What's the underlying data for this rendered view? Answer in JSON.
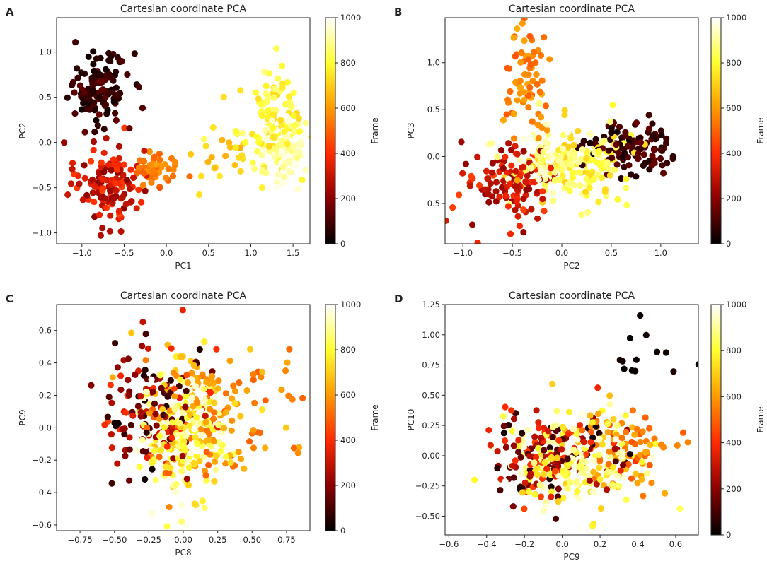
{
  "figure": {
    "colors": {
      "cmap": [
        "#000000",
        "#8b0000",
        "#ff2a00",
        "#ff9a00",
        "#ffff30",
        "#ffffff"
      ],
      "axis": "#222222"
    }
  },
  "chart_data": [
    {
      "panel_label": "A",
      "type": "scatter",
      "title": "Cartesian coordinate PCA",
      "xlabel": "PC1",
      "ylabel": "PC2",
      "xlim": [
        -1.3,
        1.7
      ],
      "ylim": [
        -1.12,
        1.38
      ],
      "xticks": [
        -1.0,
        -0.5,
        0.0,
        0.5,
        1.0,
        1.5
      ],
      "xtick_labels": [
        "−1.0",
        "−0.5",
        "0.0",
        "0.5",
        "1.0",
        "1.5"
      ],
      "yticks": [
        -1.0,
        -0.5,
        0.0,
        0.5,
        1.0
      ],
      "ytick_labels": [
        "−1.0",
        "−0.5",
        "0.0",
        "0.5",
        "1.0"
      ],
      "colorbar": {
        "label": "Frame",
        "range": [
          0,
          1000
        ],
        "ticks": [
          0,
          200,
          400,
          600,
          800,
          1000
        ],
        "tick_labels": [
          "0",
          "200",
          "400",
          "600",
          "800",
          "1000"
        ]
      },
      "clusters": [
        {
          "cx": -0.8,
          "cy": 0.6,
          "sx": 0.18,
          "sy": 0.2,
          "n": 120,
          "f": [
            20,
            150
          ]
        },
        {
          "cx": -0.7,
          "cy": -0.45,
          "sx": 0.2,
          "sy": 0.22,
          "n": 130,
          "f": [
            200,
            450
          ]
        },
        {
          "cx": -0.15,
          "cy": -0.33,
          "sx": 0.13,
          "sy": 0.12,
          "n": 50,
          "f": [
            480,
            620
          ]
        },
        {
          "cx": 0.6,
          "cy": -0.15,
          "sx": 0.2,
          "sy": 0.15,
          "n": 22,
          "f": [
            640,
            760
          ]
        },
        {
          "cx": 1.25,
          "cy": 0.25,
          "sx": 0.2,
          "sy": 0.25,
          "n": 110,
          "f": [
            720,
            880
          ]
        },
        {
          "cx": 1.35,
          "cy": -0.1,
          "sx": 0.18,
          "sy": 0.2,
          "n": 90,
          "f": [
            860,
            1000
          ]
        }
      ]
    },
    {
      "panel_label": "B",
      "type": "scatter",
      "title": "Cartesian coordinate PCA",
      "xlabel": "PC2",
      "ylabel": "PC3",
      "xlim": [
        -1.18,
        1.38
      ],
      "ylim": [
        -0.93,
        1.48
      ],
      "xticks": [
        -1.0,
        -0.5,
        0.0,
        0.5,
        1.0
      ],
      "xtick_labels": [
        "−1.0",
        "−0.5",
        "0.0",
        "0.5",
        "1.0"
      ],
      "yticks": [
        -0.5,
        0.0,
        0.5,
        1.0
      ],
      "ytick_labels": [
        "−0.5",
        "0.0",
        "0.5",
        "1.0"
      ],
      "colorbar": {
        "label": "Frame",
        "range": [
          0,
          1000
        ],
        "ticks": [
          0,
          200,
          400,
          600,
          800,
          1000
        ],
        "tick_labels": [
          "0",
          "200",
          "400",
          "600",
          "800",
          "1000"
        ]
      },
      "clusters": [
        {
          "cx": 0.7,
          "cy": 0.1,
          "sx": 0.22,
          "sy": 0.15,
          "n": 110,
          "f": [
            20,
            150
          ]
        },
        {
          "cx": -0.55,
          "cy": -0.3,
          "sx": 0.22,
          "sy": 0.22,
          "n": 120,
          "f": [
            200,
            450
          ]
        },
        {
          "cx": -0.35,
          "cy": 0.8,
          "sx": 0.12,
          "sy": 0.28,
          "n": 70,
          "f": [
            480,
            640
          ]
        },
        {
          "cx": 0.15,
          "cy": -0.1,
          "sx": 0.3,
          "sy": 0.2,
          "n": 140,
          "f": [
            700,
            880
          ]
        },
        {
          "cx": -0.05,
          "cy": -0.05,
          "sx": 0.22,
          "sy": 0.15,
          "n": 90,
          "f": [
            860,
            1000
          ]
        }
      ]
    },
    {
      "panel_label": "C",
      "type": "scatter",
      "title": "Cartesian coordinate PCA",
      "xlabel": "PC8",
      "ylabel": "PC9",
      "xlim": [
        -0.92,
        0.92
      ],
      "ylim": [
        -0.635,
        0.76
      ],
      "xticks": [
        -0.75,
        -0.5,
        -0.25,
        0.0,
        0.25,
        0.5,
        0.75
      ],
      "xtick_labels": [
        "−0.75",
        "−0.50",
        "−0.25",
        "0.00",
        "0.25",
        "0.50",
        "0.75"
      ],
      "yticks": [
        -0.6,
        -0.4,
        -0.2,
        0.0,
        0.2,
        0.4,
        0.6
      ],
      "ytick_labels": [
        "−0.6",
        "−0.4",
        "−0.2",
        "0.0",
        "0.2",
        "0.4",
        "0.6"
      ],
      "colorbar": {
        "label": "Frame",
        "range": [
          0,
          1000
        ],
        "ticks": [
          0,
          200,
          400,
          600,
          800,
          1000
        ],
        "tick_labels": [
          "0",
          "200",
          "400",
          "600",
          "800",
          "1000"
        ]
      },
      "clusters": [
        {
          "cx": -0.2,
          "cy": 0.1,
          "sx": 0.2,
          "sy": 0.22,
          "n": 140,
          "f": [
            20,
            450
          ]
        },
        {
          "cx": 0.15,
          "cy": 0.05,
          "sx": 0.25,
          "sy": 0.25,
          "n": 120,
          "f": [
            480,
            700
          ]
        },
        {
          "cx": 0.0,
          "cy": -0.05,
          "sx": 0.15,
          "sy": 0.2,
          "n": 200,
          "f": [
            700,
            1000
          ]
        },
        {
          "cx": 0.55,
          "cy": 0.1,
          "sx": 0.18,
          "sy": 0.18,
          "n": 25,
          "f": [
            480,
            640
          ]
        }
      ]
    },
    {
      "panel_label": "D",
      "type": "scatter",
      "title": "Cartesian coordinate PCA",
      "xlabel": "PC9",
      "ylabel": "PC10",
      "xlim": [
        -0.62,
        0.72
      ],
      "ylim": [
        -0.655,
        1.25
      ],
      "xticks": [
        -0.6,
        -0.4,
        -0.2,
        0.0,
        0.2,
        0.4,
        0.6
      ],
      "xtick_labels": [
        "−0.6",
        "−0.4",
        "−0.2",
        "0.0",
        "0.2",
        "0.4",
        "0.6"
      ],
      "yticks": [
        -0.5,
        -0.25,
        0.0,
        0.25,
        0.5,
        0.75,
        1.0,
        1.25
      ],
      "ytick_labels": [
        "−0.50",
        "−0.25",
        "0.00",
        "0.25",
        "0.50",
        "0.75",
        "1.00",
        "1.25"
      ],
      "colorbar": {
        "label": "Frame",
        "range": [
          0,
          1000
        ],
        "ticks": [
          0,
          200,
          400,
          600,
          800,
          1000
        ],
        "tick_labels": [
          "0",
          "200",
          "400",
          "600",
          "800",
          "1000"
        ]
      },
      "clusters": [
        {
          "cx": -0.05,
          "cy": 0.0,
          "sx": 0.17,
          "sy": 0.17,
          "n": 160,
          "f": [
            20,
            450
          ]
        },
        {
          "cx": 0.05,
          "cy": -0.05,
          "sx": 0.18,
          "sy": 0.17,
          "n": 200,
          "f": [
            700,
            1000
          ]
        },
        {
          "cx": 0.35,
          "cy": 0.05,
          "sx": 0.15,
          "sy": 0.18,
          "n": 80,
          "f": [
            480,
            680
          ]
        },
        {
          "cx": 0.45,
          "cy": 0.8,
          "sx": 0.12,
          "sy": 0.2,
          "n": 14,
          "f": [
            5,
            40
          ]
        }
      ]
    }
  ]
}
